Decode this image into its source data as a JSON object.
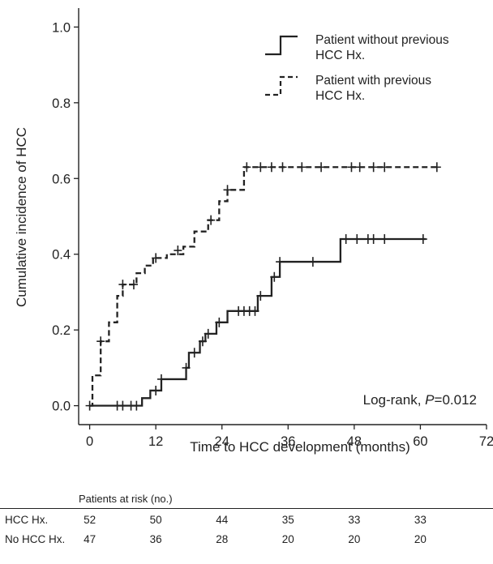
{
  "chart_data": {
    "type": "line",
    "subtype": "kaplan-meier-step",
    "xlabel": "Time to HCC development (months)",
    "ylabel": "Cumulative incidence of HCC",
    "xlim": [
      -2,
      72
    ],
    "ylim": [
      -0.05,
      1.05
    ],
    "xticks": [
      0,
      12,
      24,
      36,
      48,
      60,
      72
    ],
    "xtick_labels": [
      "0",
      "12",
      "24",
      "36",
      "48",
      "60",
      "72"
    ],
    "yticks": [
      0.0,
      0.2,
      0.4,
      0.6,
      0.8,
      1.0
    ],
    "ytick_labels": [
      "0.0",
      "0.2",
      "0.4",
      "0.6",
      "0.8",
      "1.0"
    ],
    "grid": false,
    "legend_position": "top-right",
    "annotation": {
      "prefix": "Log-rank, ",
      "p_label": "P",
      "value": "=0.012"
    },
    "series": [
      {
        "name": "Patient without previous HCC Hx.",
        "legend_lines": [
          "Patient without previous",
          "HCC Hx."
        ],
        "style": "solid",
        "steps": [
          [
            0,
            0.0
          ],
          [
            9.5,
            0.02
          ],
          [
            11,
            0.04
          ],
          [
            13,
            0.07
          ],
          [
            17.5,
            0.1
          ],
          [
            18,
            0.14
          ],
          [
            20,
            0.17
          ],
          [
            21,
            0.19
          ],
          [
            23,
            0.22
          ],
          [
            25,
            0.25
          ],
          [
            30.5,
            0.29
          ],
          [
            33,
            0.34
          ],
          [
            34.5,
            0.38
          ],
          [
            45.5,
            0.44
          ],
          [
            61,
            0.44
          ]
        ],
        "censored": [
          [
            0,
            0.0
          ],
          [
            5,
            0.0
          ],
          [
            6,
            0.0
          ],
          [
            7.5,
            0.0
          ],
          [
            8.5,
            0.0
          ],
          [
            12,
            0.04
          ],
          [
            13,
            0.07
          ],
          [
            17.5,
            0.1
          ],
          [
            19,
            0.14
          ],
          [
            20.5,
            0.17
          ],
          [
            21.5,
            0.19
          ],
          [
            23.5,
            0.22
          ],
          [
            27,
            0.25
          ],
          [
            28,
            0.25
          ],
          [
            29,
            0.25
          ],
          [
            30,
            0.25
          ],
          [
            31,
            0.29
          ],
          [
            33.5,
            0.34
          ],
          [
            34.5,
            0.38
          ],
          [
            40.5,
            0.38
          ],
          [
            46.5,
            0.44
          ],
          [
            48.5,
            0.44
          ],
          [
            50.5,
            0.44
          ],
          [
            51.5,
            0.44
          ],
          [
            53.5,
            0.44
          ],
          [
            60.5,
            0.44
          ]
        ]
      },
      {
        "name": "Patient with previous HCC Hx.",
        "legend_lines": [
          "Patient with previous",
          "HCC Hx."
        ],
        "style": "dashed",
        "steps": [
          [
            0,
            0.0
          ],
          [
            0.5,
            0.08
          ],
          [
            2,
            0.17
          ],
          [
            3.5,
            0.22
          ],
          [
            5,
            0.29
          ],
          [
            6,
            0.32
          ],
          [
            8.5,
            0.35
          ],
          [
            10,
            0.37
          ],
          [
            11.5,
            0.39
          ],
          [
            14,
            0.4
          ],
          [
            17,
            0.42
          ],
          [
            19,
            0.46
          ],
          [
            21.5,
            0.49
          ],
          [
            23.5,
            0.54
          ],
          [
            25,
            0.57
          ],
          [
            28,
            0.63
          ],
          [
            63,
            0.63
          ]
        ],
        "censored": [
          [
            2,
            0.17
          ],
          [
            6,
            0.32
          ],
          [
            8,
            0.32
          ],
          [
            12,
            0.39
          ],
          [
            16,
            0.41
          ],
          [
            22,
            0.49
          ],
          [
            25,
            0.57
          ],
          [
            28.5,
            0.63
          ],
          [
            31,
            0.63
          ],
          [
            33,
            0.63
          ],
          [
            35,
            0.63
          ],
          [
            38.5,
            0.63
          ],
          [
            42,
            0.63
          ],
          [
            47.5,
            0.63
          ],
          [
            49,
            0.63
          ],
          [
            51.5,
            0.63
          ],
          [
            53.5,
            0.63
          ],
          [
            63,
            0.63
          ]
        ]
      }
    ]
  },
  "risk_table": {
    "title": "Patients at risk (no.)",
    "time_points": [
      0,
      12,
      24,
      36,
      48,
      60
    ],
    "rows": [
      {
        "label": "HCC Hx.",
        "values": [
          "52",
          "50",
          "44",
          "35",
          "33",
          "33"
        ]
      },
      {
        "label": "No HCC Hx.",
        "values": [
          "47",
          "36",
          "28",
          "20",
          "20",
          "20"
        ]
      }
    ]
  }
}
